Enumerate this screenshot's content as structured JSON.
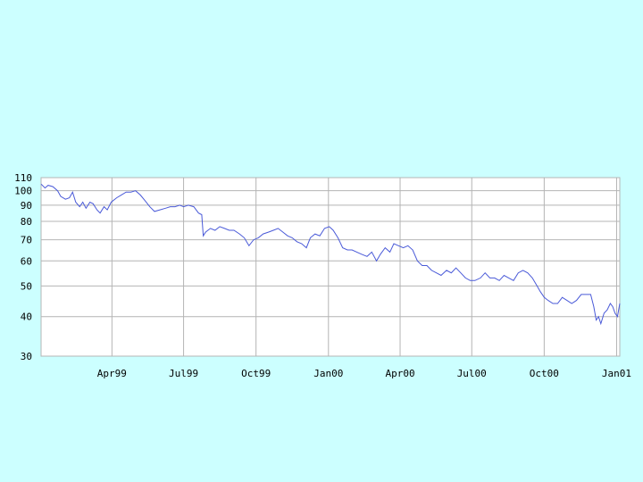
{
  "chart_data": {
    "type": "line",
    "title": "",
    "xlabel": "",
    "ylabel": "",
    "y_scale": "log",
    "ylim": [
      30,
      110
    ],
    "xlim": [
      "1999-01-01",
      "2001-01-05"
    ],
    "grid": true,
    "y_ticks": [
      {
        "value": 30,
        "label": "30"
      },
      {
        "value": 40,
        "label": "40"
      },
      {
        "value": 50,
        "label": "50"
      },
      {
        "value": 60,
        "label": "60"
      },
      {
        "value": 70,
        "label": "70"
      },
      {
        "value": 80,
        "label": "80"
      },
      {
        "value": 90,
        "label": "90"
      },
      {
        "value": 100,
        "label": "100"
      },
      {
        "value": 110,
        "label": "110"
      }
    ],
    "x_ticks": [
      {
        "date": "1999-04-01",
        "label": "Apr99"
      },
      {
        "date": "1999-07-01",
        "label": "Jul99"
      },
      {
        "date": "1999-10-01",
        "label": "Oct99"
      },
      {
        "date": "2000-01-01",
        "label": "Jan00"
      },
      {
        "date": "2000-04-01",
        "label": "Apr00"
      },
      {
        "date": "2000-07-01",
        "label": "Jul00"
      },
      {
        "date": "2000-10-01",
        "label": "Oct00"
      },
      {
        "date": "2001-01-01",
        "label": "Jan01"
      }
    ],
    "colors": {
      "line": "#4a5ad8",
      "grid": "#b4b4b4",
      "background": "#ffffff",
      "page": "#ccffff"
    },
    "series": [
      {
        "points": [
          [
            "1999-01-01",
            105
          ],
          [
            "1999-01-06",
            102
          ],
          [
            "1999-01-10",
            104
          ],
          [
            "1999-01-16",
            103
          ],
          [
            "1999-01-22",
            100
          ],
          [
            "1999-01-26",
            96
          ],
          [
            "1999-02-01",
            94
          ],
          [
            "1999-02-06",
            95
          ],
          [
            "1999-02-10",
            99
          ],
          [
            "1999-02-14",
            92
          ],
          [
            "1999-02-19",
            89
          ],
          [
            "1999-02-23",
            92
          ],
          [
            "1999-02-27",
            88
          ],
          [
            "1999-03-04",
            92
          ],
          [
            "1999-03-08",
            91
          ],
          [
            "1999-03-13",
            87
          ],
          [
            "1999-03-17",
            85
          ],
          [
            "1999-03-22",
            89
          ],
          [
            "1999-03-26",
            87
          ],
          [
            "1999-03-31",
            92
          ],
          [
            "1999-04-07",
            95
          ],
          [
            "1999-04-13",
            97
          ],
          [
            "1999-04-19",
            99
          ],
          [
            "1999-04-25",
            99
          ],
          [
            "1999-05-01",
            100
          ],
          [
            "1999-05-07",
            97
          ],
          [
            "1999-05-13",
            93
          ],
          [
            "1999-05-19",
            89
          ],
          [
            "1999-05-25",
            86
          ],
          [
            "1999-06-01",
            87
          ],
          [
            "1999-06-08",
            88
          ],
          [
            "1999-06-14",
            89
          ],
          [
            "1999-06-20",
            89
          ],
          [
            "1999-06-26",
            90
          ],
          [
            "1999-07-01",
            89
          ],
          [
            "1999-07-07",
            90
          ],
          [
            "1999-07-14",
            89
          ],
          [
            "1999-07-20",
            85
          ],
          [
            "1999-07-24",
            84
          ],
          [
            "1999-07-26",
            72
          ],
          [
            "1999-07-29",
            74
          ],
          [
            "1999-08-04",
            76
          ],
          [
            "1999-08-10",
            75
          ],
          [
            "1999-08-16",
            77
          ],
          [
            "1999-08-22",
            76
          ],
          [
            "1999-08-28",
            75
          ],
          [
            "1999-09-03",
            75
          ],
          [
            "1999-09-10",
            73
          ],
          [
            "1999-09-16",
            71
          ],
          [
            "1999-09-22",
            67
          ],
          [
            "1999-09-28",
            70
          ],
          [
            "1999-10-04",
            71
          ],
          [
            "1999-10-10",
            73
          ],
          [
            "1999-10-17",
            74
          ],
          [
            "1999-10-23",
            75
          ],
          [
            "1999-10-29",
            76
          ],
          [
            "1999-11-04",
            74
          ],
          [
            "1999-11-10",
            72
          ],
          [
            "1999-11-16",
            71
          ],
          [
            "1999-11-22",
            69
          ],
          [
            "1999-11-28",
            68
          ],
          [
            "1999-12-04",
            66
          ],
          [
            "1999-12-09",
            71
          ],
          [
            "1999-12-15",
            73
          ],
          [
            "1999-12-21",
            72
          ],
          [
            "1999-12-27",
            76
          ],
          [
            "2000-01-02",
            77
          ],
          [
            "2000-01-07",
            75
          ],
          [
            "2000-01-13",
            71
          ],
          [
            "2000-01-19",
            66
          ],
          [
            "2000-01-25",
            65
          ],
          [
            "2000-01-31",
            65
          ],
          [
            "2000-02-06",
            64
          ],
          [
            "2000-02-12",
            63
          ],
          [
            "2000-02-19",
            62
          ],
          [
            "2000-02-25",
            64
          ],
          [
            "2000-03-02",
            60
          ],
          [
            "2000-03-07",
            63
          ],
          [
            "2000-03-13",
            66
          ],
          [
            "2000-03-19",
            64
          ],
          [
            "2000-03-24",
            68
          ],
          [
            "2000-03-30",
            67
          ],
          [
            "2000-04-05",
            66
          ],
          [
            "2000-04-11",
            67
          ],
          [
            "2000-04-17",
            65
          ],
          [
            "2000-04-23",
            60
          ],
          [
            "2000-04-29",
            58
          ],
          [
            "2000-05-05",
            58
          ],
          [
            "2000-05-11",
            56
          ],
          [
            "2000-05-17",
            55
          ],
          [
            "2000-05-23",
            54
          ],
          [
            "2000-05-30",
            56
          ],
          [
            "2000-06-05",
            55
          ],
          [
            "2000-06-11",
            57
          ],
          [
            "2000-06-17",
            55
          ],
          [
            "2000-06-23",
            53
          ],
          [
            "2000-06-29",
            52
          ],
          [
            "2000-07-05",
            52
          ],
          [
            "2000-07-12",
            53
          ],
          [
            "2000-07-18",
            55
          ],
          [
            "2000-07-24",
            53
          ],
          [
            "2000-07-30",
            53
          ],
          [
            "2000-08-05",
            52
          ],
          [
            "2000-08-11",
            54
          ],
          [
            "2000-08-17",
            53
          ],
          [
            "2000-08-23",
            52
          ],
          [
            "2000-08-29",
            55
          ],
          [
            "2000-09-04",
            56
          ],
          [
            "2000-09-10",
            55
          ],
          [
            "2000-09-16",
            53
          ],
          [
            "2000-09-22",
            50
          ],
          [
            "2000-09-26",
            48
          ],
          [
            "2000-10-01",
            46
          ],
          [
            "2000-10-06",
            45
          ],
          [
            "2000-10-12",
            44
          ],
          [
            "2000-10-18",
            44
          ],
          [
            "2000-10-24",
            46
          ],
          [
            "2000-10-30",
            45
          ],
          [
            "2000-11-05",
            44
          ],
          [
            "2000-11-11",
            45
          ],
          [
            "2000-11-17",
            47
          ],
          [
            "2000-11-23",
            47
          ],
          [
            "2000-11-29",
            47
          ],
          [
            "2000-12-03",
            43
          ],
          [
            "2000-12-06",
            39
          ],
          [
            "2000-12-09",
            40
          ],
          [
            "2000-12-12",
            38
          ],
          [
            "2000-12-16",
            41
          ],
          [
            "2000-12-20",
            42
          ],
          [
            "2000-12-24",
            44
          ],
          [
            "2000-12-27",
            43
          ],
          [
            "2000-12-30",
            41
          ],
          [
            "2001-01-02",
            40
          ],
          [
            "2001-01-05",
            44
          ]
        ]
      }
    ]
  }
}
